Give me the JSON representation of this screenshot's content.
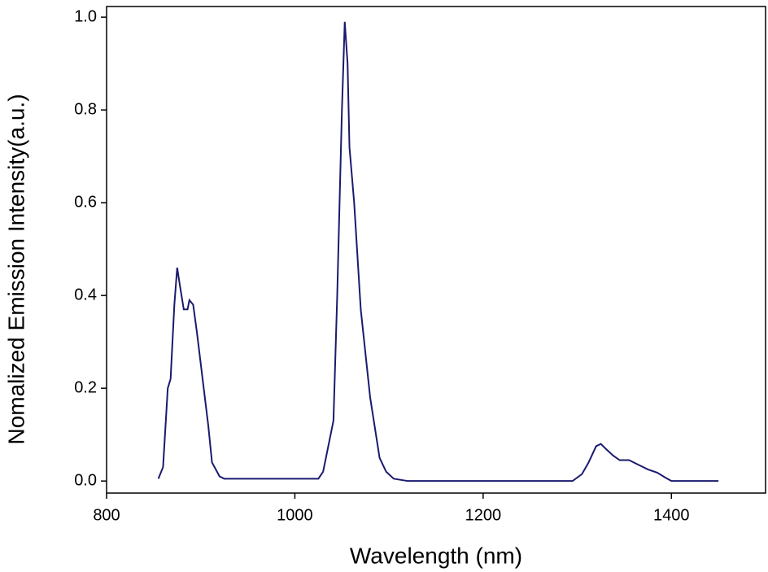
{
  "chart_data": {
    "type": "line",
    "x_label": "Wavelength (nm)",
    "y_label": "Nomalized Emission Intensity(a.u.)",
    "xlim": [
      800,
      1500
    ],
    "ylim": [
      -0.026,
      1.023
    ],
    "xticks": [
      800,
      1000,
      1200,
      1400
    ],
    "yticks": [
      {
        "value": 0,
        "label": "0.0"
      },
      0.2,
      0.4,
      0.6,
      0.8,
      {
        "value": 1,
        "label": "1.0"
      }
    ],
    "series": [
      {
        "color": "#1a1a6e",
        "x": [
          855,
          860,
          865,
          868,
          872,
          875,
          878,
          882,
          886,
          888,
          892,
          896,
          902,
          908,
          912,
          920,
          925,
          1000,
          1025,
          1030,
          1035,
          1041,
          1045,
          1050,
          1053,
          1056,
          1058,
          1063,
          1070,
          1080,
          1090,
          1097,
          1105,
          1120,
          1200,
          1295,
          1305,
          1312,
          1320,
          1325,
          1330,
          1338,
          1345,
          1355,
          1365,
          1375,
          1385,
          1393,
          1400,
          1450
        ],
        "values": [
          0.005,
          0.03,
          0.2,
          0.22,
          0.38,
          0.46,
          0.42,
          0.37,
          0.37,
          0.39,
          0.38,
          0.32,
          0.22,
          0.12,
          0.04,
          0.01,
          0.005,
          0.005,
          0.005,
          0.02,
          0.07,
          0.13,
          0.4,
          0.8,
          0.99,
          0.9,
          0.72,
          0.6,
          0.37,
          0.18,
          0.05,
          0.02,
          0.005,
          0,
          0,
          0,
          0.015,
          0.04,
          0.075,
          0.08,
          0.07,
          0.055,
          0.045,
          0.045,
          0.035,
          0.025,
          0.018,
          0.008,
          0,
          0
        ]
      }
    ]
  }
}
